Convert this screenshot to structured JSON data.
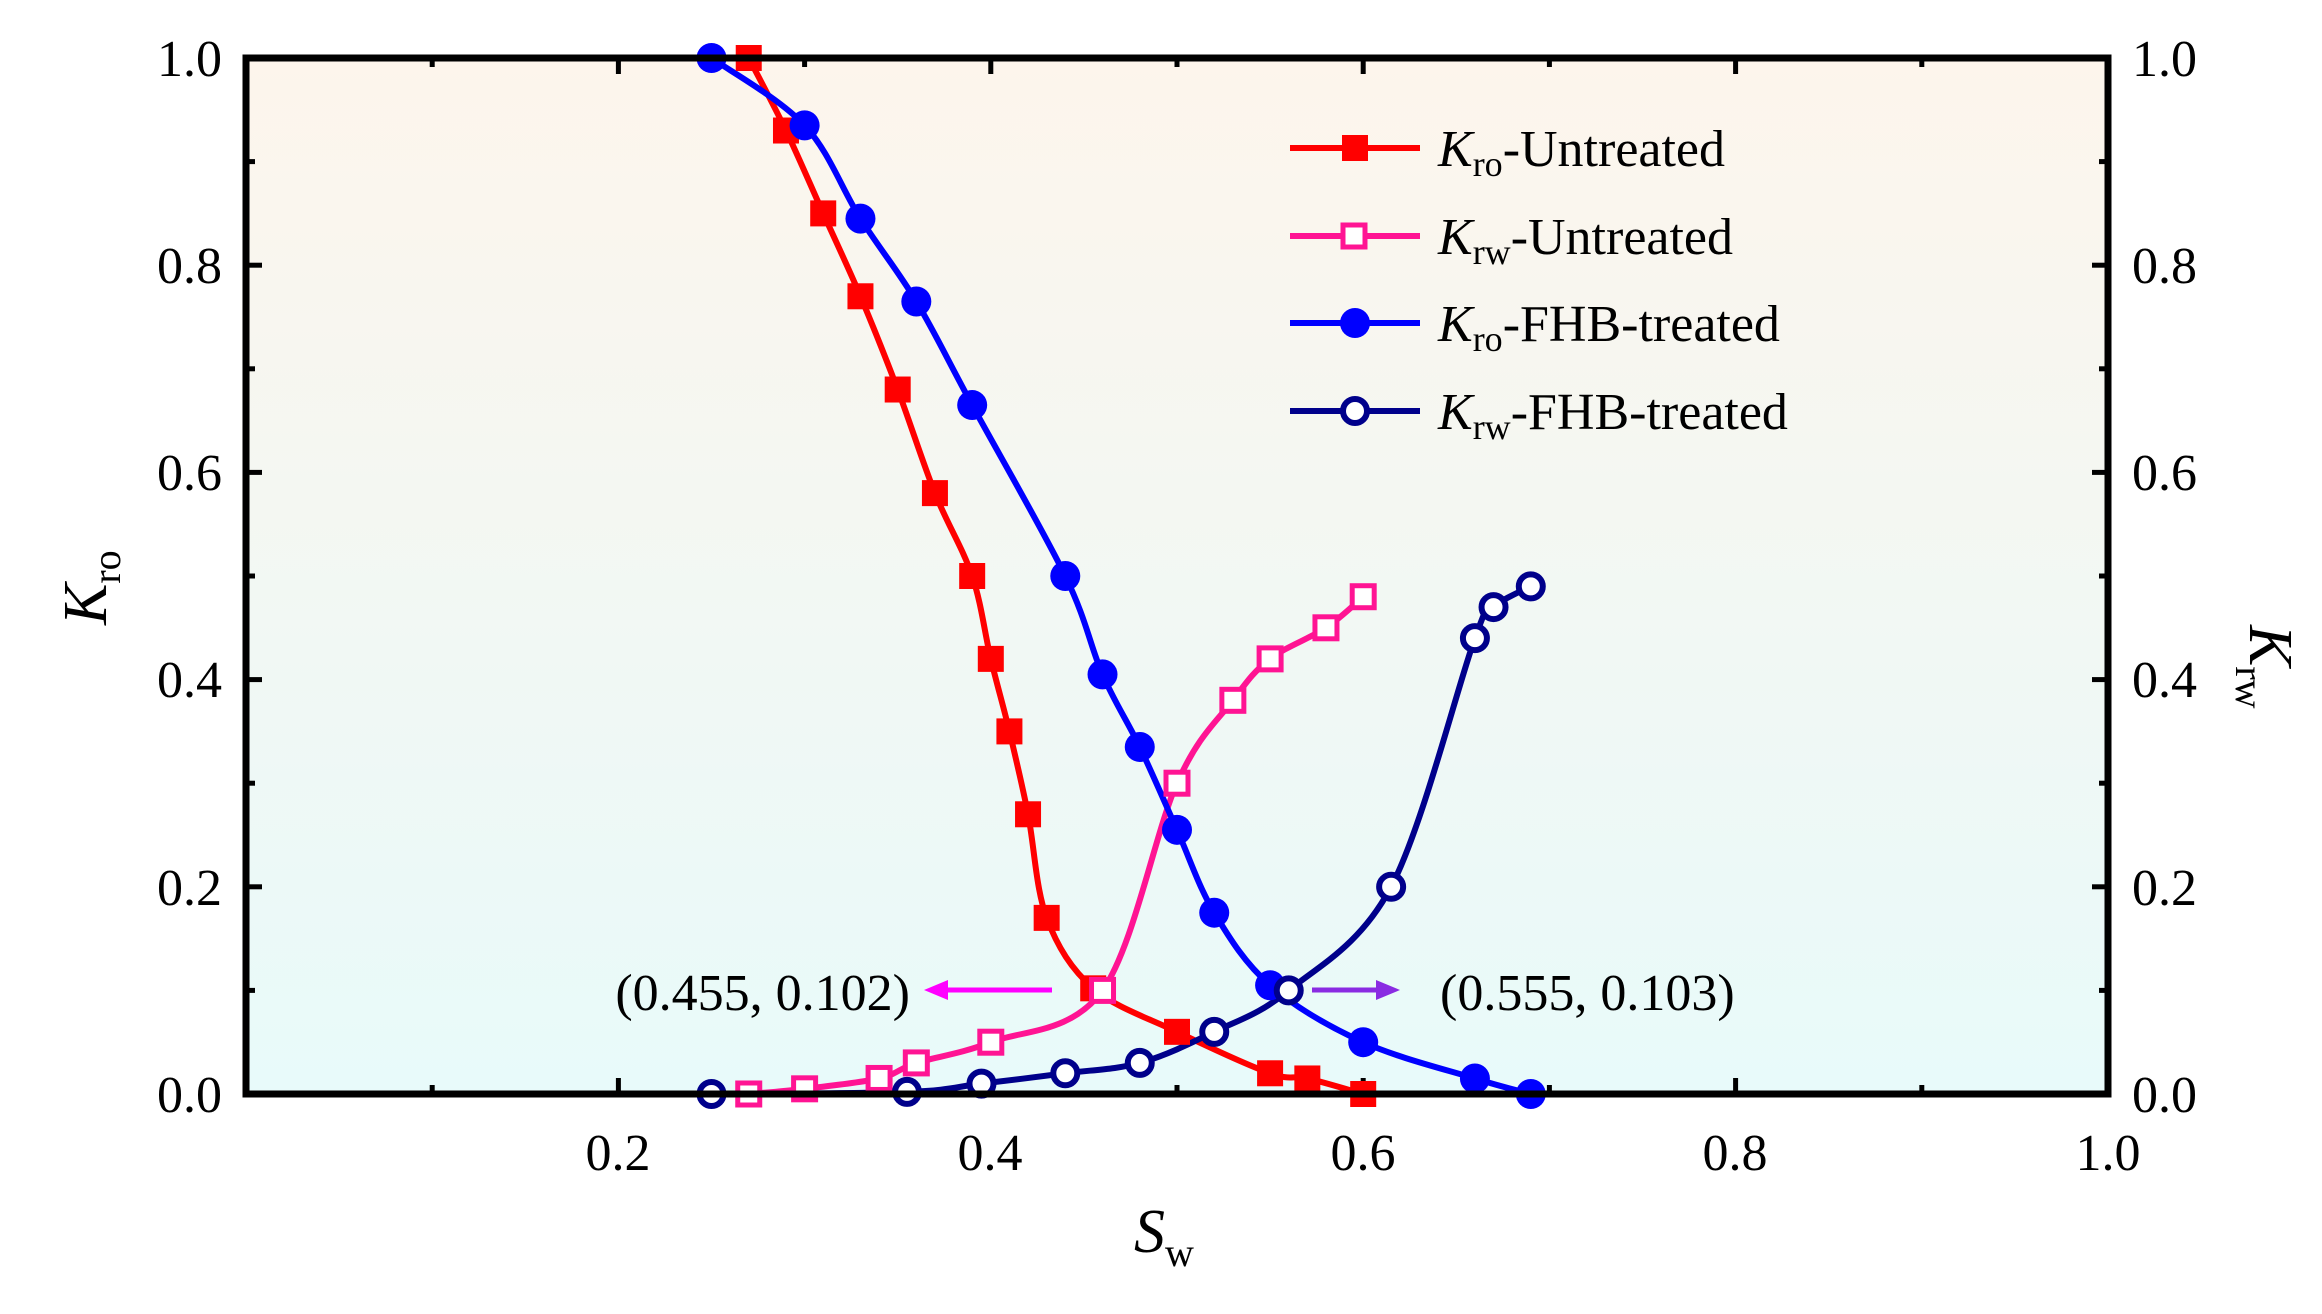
{
  "chart_data": {
    "type": "line",
    "x_axis": {
      "label_main": "S",
      "label_sub": "w",
      "range": [
        0.0,
        1.0
      ],
      "tick_labels": [
        "0.2",
        "0.4",
        "0.6",
        "0.8",
        "1.0"
      ],
      "tick_values": [
        0.2,
        0.4,
        0.6,
        0.8,
        1.0
      ]
    },
    "y_left": {
      "label_main": "K",
      "label_sub": "ro",
      "range": [
        0.0,
        1.0
      ],
      "tick_labels": [
        "0.0",
        "0.2",
        "0.4",
        "0.6",
        "0.8",
        "1.0"
      ],
      "tick_values": [
        0.0,
        0.2,
        0.4,
        0.6,
        0.8,
        1.0
      ]
    },
    "y_right": {
      "label_main": "K",
      "label_sub": "rw",
      "range": [
        0.0,
        1.0
      ],
      "tick_labels": [
        "0.0",
        "0.2",
        "0.4",
        "0.6",
        "0.8",
        "1.0"
      ],
      "tick_values": [
        0.0,
        0.2,
        0.4,
        0.6,
        0.8,
        1.0
      ]
    },
    "background": "gradient from light peach (top) to light cyan (bottom)",
    "legend_position": "top-right",
    "series": [
      {
        "name_main": "K",
        "name_sub": "ro",
        "name_rest": "-Untreated",
        "color": "#ff0000",
        "marker": "filled-square",
        "axis": "left",
        "x": [
          0.27,
          0.29,
          0.31,
          0.33,
          0.35,
          0.37,
          0.39,
          0.4,
          0.41,
          0.42,
          0.43,
          0.455,
          0.5,
          0.55,
          0.57,
          0.6
        ],
        "y": [
          1.0,
          0.93,
          0.85,
          0.77,
          0.68,
          0.58,
          0.5,
          0.42,
          0.35,
          0.27,
          0.17,
          0.102,
          0.06,
          0.02,
          0.015,
          0.0
        ]
      },
      {
        "name_main": "K",
        "name_sub": "rw",
        "name_rest": "-Untreated",
        "color": "#ff1493",
        "marker": "open-square",
        "axis": "right",
        "x": [
          0.27,
          0.3,
          0.34,
          0.36,
          0.4,
          0.46,
          0.5,
          0.53,
          0.55,
          0.58,
          0.6
        ],
        "y": [
          0.0,
          0.005,
          0.015,
          0.03,
          0.05,
          0.1,
          0.3,
          0.38,
          0.42,
          0.45,
          0.48
        ]
      },
      {
        "name_main": "K",
        "name_sub": "ro",
        "name_rest": "-FHB-treated",
        "color": "#0000ff",
        "marker": "filled-circle",
        "axis": "left",
        "x": [
          0.25,
          0.3,
          0.33,
          0.36,
          0.39,
          0.44,
          0.46,
          0.48,
          0.5,
          0.52,
          0.55,
          0.6,
          0.66,
          0.69
        ],
        "y": [
          1.0,
          0.935,
          0.845,
          0.765,
          0.665,
          0.5,
          0.405,
          0.335,
          0.255,
          0.175,
          0.105,
          0.05,
          0.015,
          0.0
        ]
      },
      {
        "name_main": "K",
        "name_sub": "rw",
        "name_rest": "-FHB-treated",
        "color": "#00008b",
        "marker": "open-circle",
        "axis": "right",
        "x": [
          0.25,
          0.355,
          0.395,
          0.44,
          0.48,
          0.52,
          0.56,
          0.615,
          0.66,
          0.67,
          0.69
        ],
        "y": [
          0.0,
          0.002,
          0.01,
          0.02,
          0.03,
          0.06,
          0.1,
          0.2,
          0.44,
          0.47,
          0.49
        ]
      }
    ],
    "annotations": [
      {
        "text": "(0.455, 0.102)",
        "point": [
          0.455,
          0.102
        ],
        "arrow_direction": "left",
        "color": "#ff00ff"
      },
      {
        "text": "(0.555, 0.103)",
        "point": [
          0.555,
          0.103
        ],
        "arrow_direction": "right",
        "color": "#8a2be2"
      }
    ]
  }
}
